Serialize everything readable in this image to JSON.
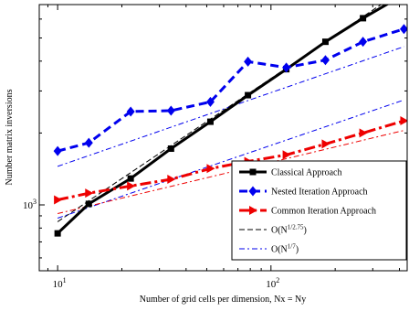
{
  "chart_data": {
    "type": "line",
    "xlabel": "Number of grid cells per dimension, Nx = Ny",
    "ylabel": "Number matrix inversions",
    "xscale": "log",
    "yscale": "log",
    "xlim": [
      8.2,
      435
    ],
    "ylim": [
      530,
      6900
    ],
    "x_ticks": [
      {
        "value": 10,
        "base": "10",
        "exp": "1"
      },
      {
        "value": 100,
        "base": "10",
        "exp": "2"
      }
    ],
    "y_ticks": [
      {
        "value": 1000,
        "base": "10",
        "exp": "3"
      }
    ],
    "grid": false,
    "legend_position": "bottom-right",
    "series": [
      {
        "name": "Classical Approach",
        "color": "#000000",
        "style": "solid",
        "width": 3,
        "marker": "square",
        "x": [
          10,
          14,
          22,
          34,
          52,
          78,
          118,
          180,
          270,
          420
        ],
        "y": [
          760,
          1010,
          1290,
          1720,
          2230,
          2880,
          3700,
          4820,
          6050,
          7600
        ]
      },
      {
        "name": "Nested Iteration Approach",
        "color": "#0000ee",
        "style": "dashed",
        "width": 3,
        "marker": "diamond",
        "x": [
          10,
          14,
          22,
          34,
          52,
          78,
          118,
          180,
          270,
          420
        ],
        "y": [
          1680,
          1820,
          2460,
          2480,
          2700,
          3980,
          3760,
          4040,
          4820,
          5450
        ]
      },
      {
        "name": "Common Iteration Approach",
        "color": "#ee0000",
        "style": "dashdot",
        "width": 3,
        "marker": "triangle-right",
        "x": [
          10,
          14,
          22,
          34,
          52,
          78,
          118,
          180,
          270,
          420
        ],
        "y": [
          1050,
          1120,
          1200,
          1280,
          1420,
          1520,
          1620,
          1800,
          2000,
          2250
        ]
      },
      {
        "name_base": "O(N",
        "name_sup": "1/2.75",
        "name_end": ")",
        "color": "#000000",
        "style": "dashed",
        "width": 1,
        "marker": "none",
        "x": [
          10,
          420
        ],
        "y": [
          850,
          8000
        ]
      },
      {
        "name_base": "O(N",
        "name_sup": "1/7",
        "name_end": ")",
        "color": "#0000ee",
        "style": "dashdot",
        "width": 1,
        "marker": "none",
        "x": [
          10,
          420
        ],
        "y": [
          880,
          2750
        ]
      },
      {
        "name": "",
        "color": "#0000ee",
        "style": "dashdot",
        "width": 1,
        "marker": "none",
        "x": [
          10,
          420
        ],
        "y": [
          1450,
          4600
        ]
      },
      {
        "name": "",
        "color": "#ee0000",
        "style": "dashdot",
        "width": 1,
        "marker": "none",
        "x": [
          10,
          420
        ],
        "y": [
          920,
          2050
        ]
      }
    ]
  }
}
